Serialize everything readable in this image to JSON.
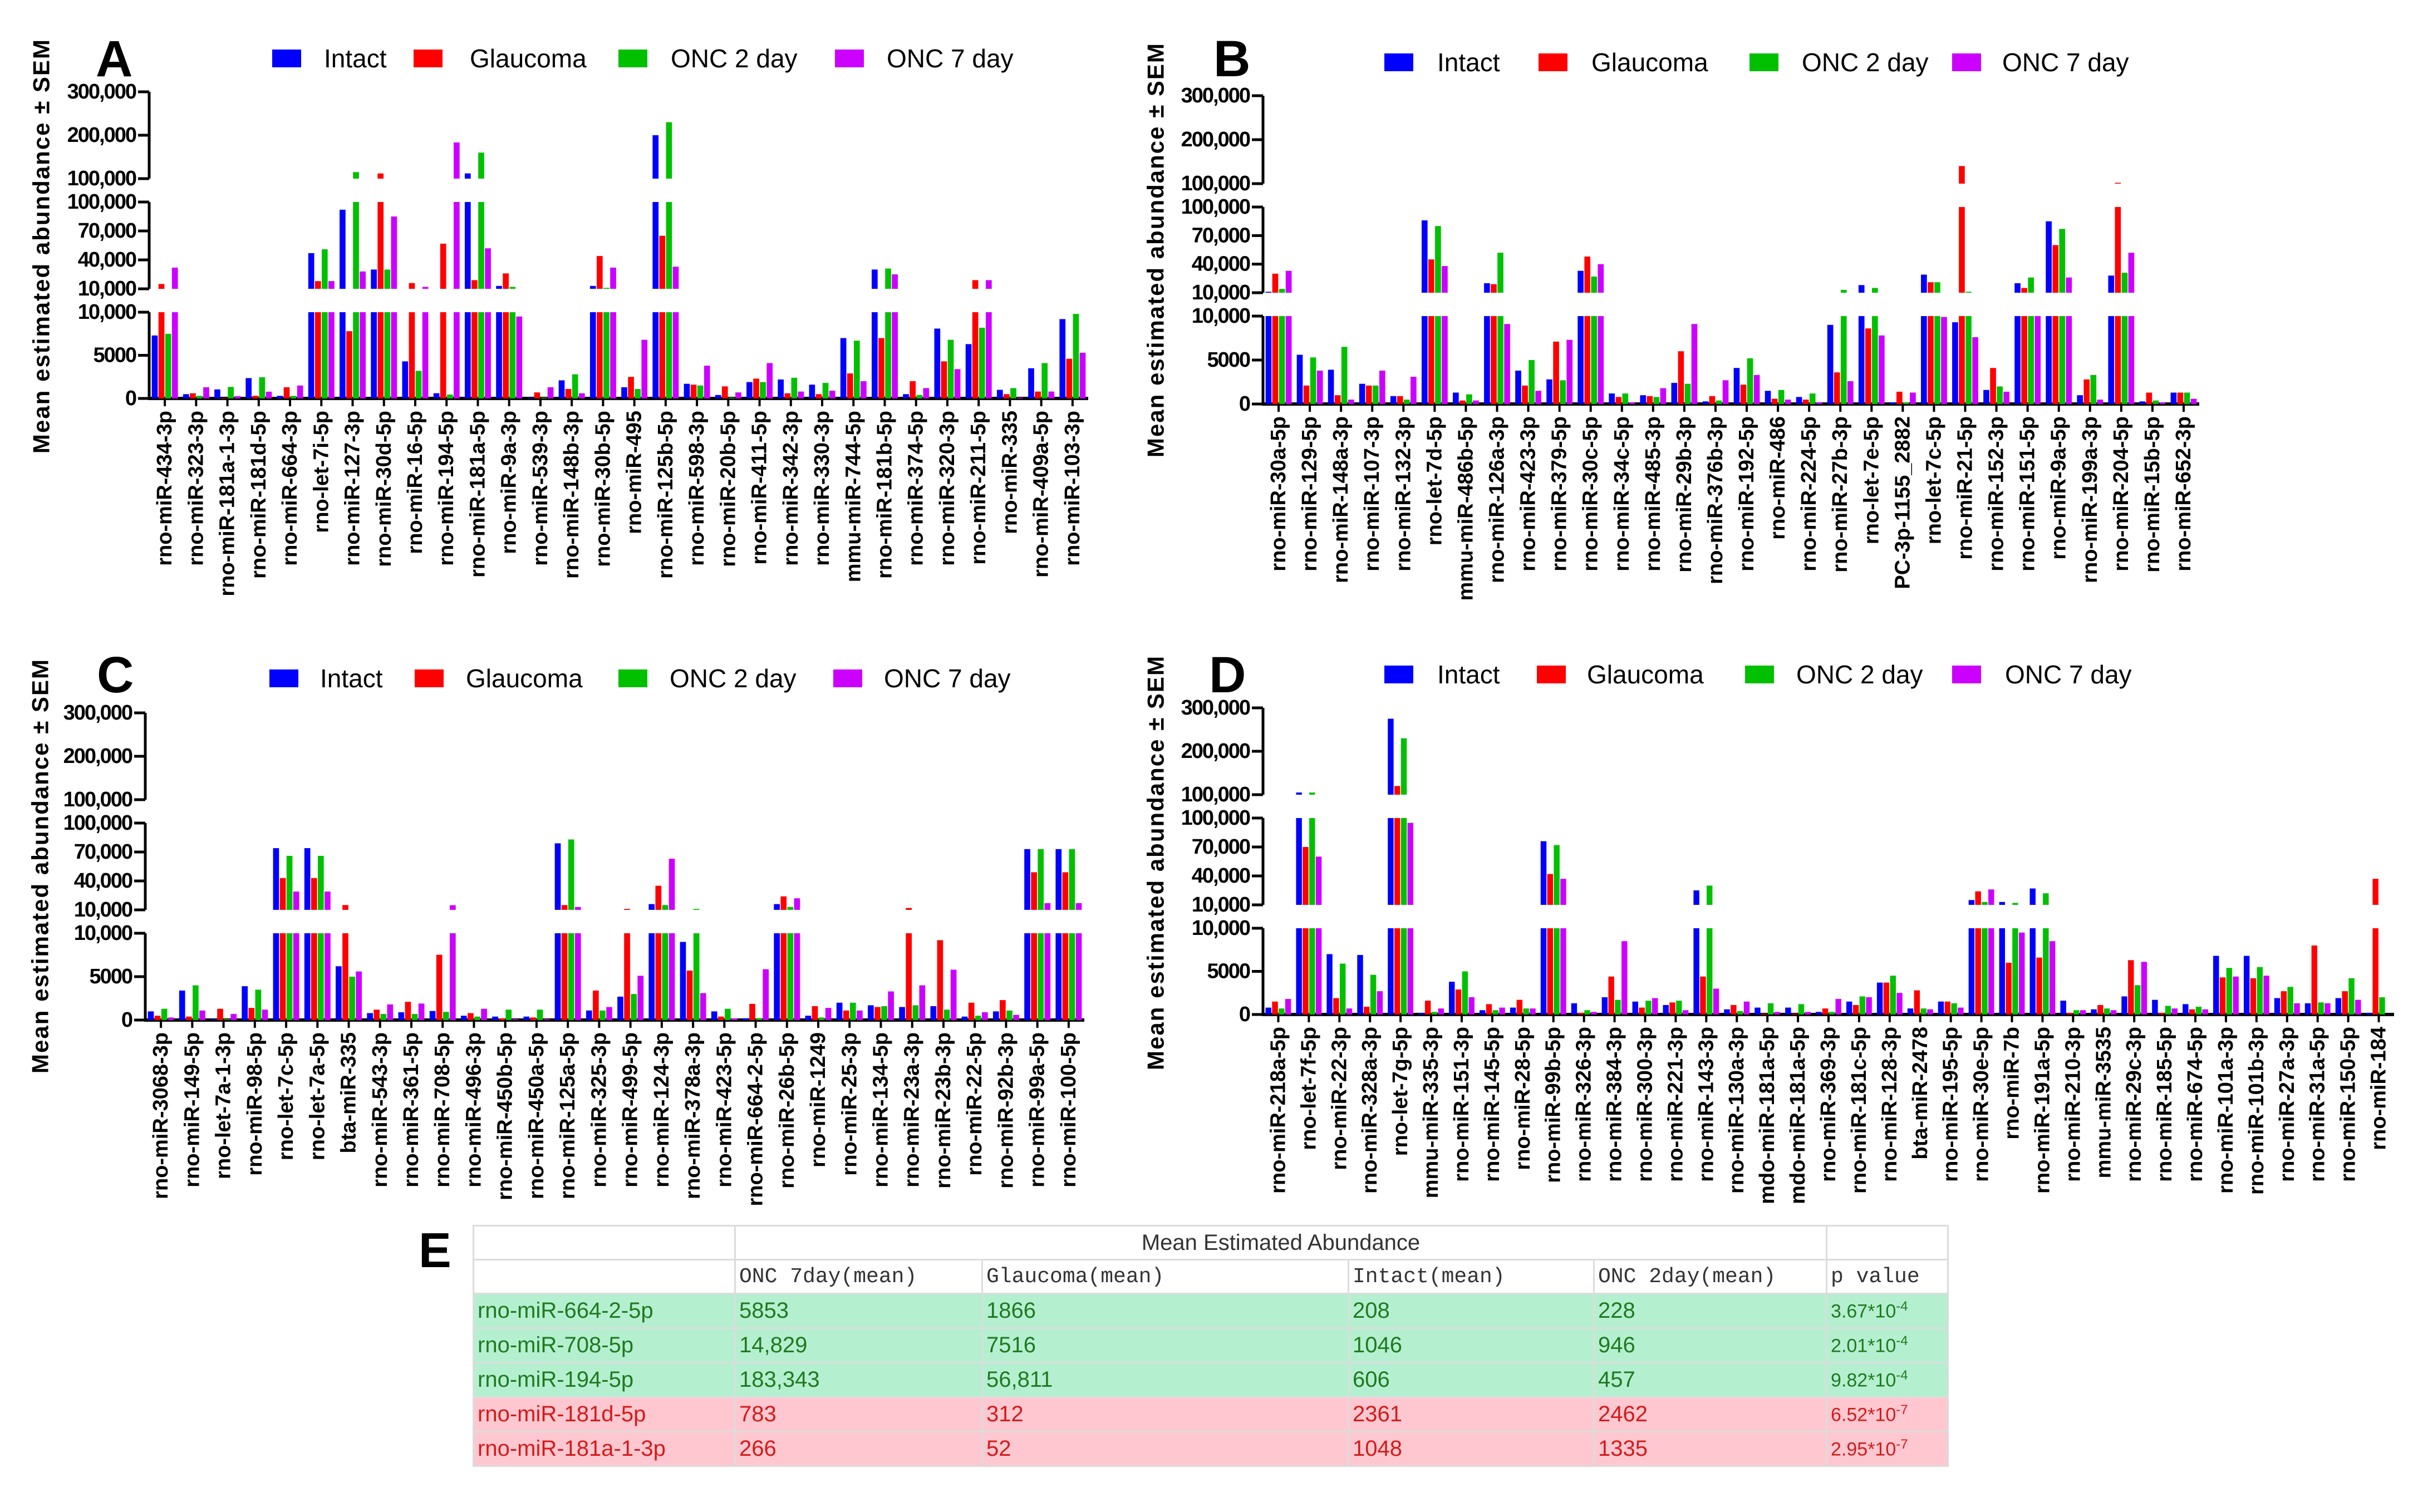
{
  "legend": [
    {
      "name": "Intact",
      "color": "#0000ff"
    },
    {
      "name": "Glaucoma",
      "color": "#ff0000"
    },
    {
      "name": "ONC 2 day",
      "color": "#00c000"
    },
    {
      "name": "ONC 7 day",
      "color": "#cc00ff"
    }
  ],
  "chart_data": [
    {
      "panel": "A",
      "type": "bar",
      "ylabel": "Mean estimated abundance ± SEM",
      "y_axis": "broken (0–10,000 | 10,000–100,000 | 100,000–300,000)",
      "yticks": {
        "bottom": [
          "0",
          "5000",
          "10,000"
        ],
        "middle": [
          "10,000",
          "40,000",
          "70,000",
          "100,000"
        ],
        "top": [
          "100,000",
          "200,000",
          "300,000"
        ]
      },
      "legend_position": "top",
      "categories": [
        "rno-miR-434-3p",
        "rno-miR-323-3p",
        "rno-miR-181a-1-3p",
        "rno-miR-181d-5p",
        "rno-miR-664-3p",
        "rno-let-7i-5p",
        "rno-miR-127-3p",
        "rno-miR-30d-5p",
        "rno-miR-16-5p",
        "rno-miR-194-5p",
        "rno-miR-181a-5p",
        "rno-miR-9a-3p",
        "rno-miR-539-3p",
        "rno-miR-148b-3p",
        "rno-miR-30b-5p",
        "rno-miR-495",
        "rno-miR-125b-5p",
        "rno-miR-598-3p",
        "rno-miR-20b-5p",
        "rno-miR-411-5p",
        "rno-miR-342-3p",
        "rno-miR-330-3p",
        "mmu-miR-744-5p",
        "rno-miR-181b-5p",
        "rno-miR-374-5p",
        "rno-miR-320-3p",
        "rno-miR-211-5p",
        "rno-miR-335",
        "rno-miR-409a-5p",
        "rno-miR-103-3p"
      ],
      "series": [
        {
          "name": "Intact",
          "values": [
            7300,
            500,
            1048,
            2361,
            300,
            47000,
            92000,
            30000,
            4300,
            606,
            112000,
            13000,
            100,
            2100,
            13000,
            1300,
            200000,
            1700,
            400,
            1900,
            2200,
            1600,
            7000,
            30000,
            500,
            8100,
            6300,
            1000,
            3500,
            9200
          ]
        },
        {
          "name": "Glaucoma",
          "values": [
            15000,
            600,
            52,
            312,
            1300,
            18000,
            7800,
            112000,
            16000,
            56811,
            19000,
            26000,
            700,
            1100,
            44000,
            2500,
            65000,
            1600,
            1400,
            2300,
            600,
            500,
            2900,
            7000,
            2000,
            4300,
            19000,
            500,
            800,
            4600
          ]
        },
        {
          "name": "ONC 2 day",
          "values": [
            7500,
            300,
            1335,
            2462,
            300,
            51000,
            115000,
            30000,
            3200,
            457,
            160000,
            12000,
            100,
            2800,
            11000,
            1100,
            230000,
            1500,
            100,
            1900,
            2400,
            1800,
            6700,
            31000,
            400,
            6800,
            8200,
            1200,
            4100,
            9800
          ]
        },
        {
          "name": "ONC 7 day",
          "values": [
            32000,
            1300,
            266,
            783,
            1500,
            18000,
            28000,
            85000,
            12000,
            183343,
            52000,
            9500,
            1300,
            600,
            32000,
            6800,
            33000,
            3800,
            700,
            4100,
            800,
            900,
            2000,
            25000,
            1200,
            3400,
            19000,
            100,
            800,
            5300
          ]
        }
      ]
    },
    {
      "panel": "B",
      "type": "bar",
      "ylabel": "Mean estimated abundance ± SEM",
      "y_axis": "broken (0–10,000 | 10,000–100,000 | 100,000–300,000)",
      "yticks": {
        "bottom": [
          "0",
          "5000",
          "10,000"
        ],
        "middle": [
          "10,000",
          "40,000",
          "70,000",
          "100,000"
        ],
        "top": [
          "100,000",
          "200,000",
          "300,000"
        ]
      },
      "legend_position": "top",
      "categories": [
        "rno-miR-30a-5p",
        "rno-miR-129-5p",
        "rno-miR-148a-3p",
        "rno-miR-107-3p",
        "rno-miR-132-3p",
        "rno-let-7d-5p",
        "mmu-miR-486b-5p",
        "rno-miR-126a-3p",
        "rno-miR-423-3p",
        "rno-miR-379-5p",
        "rno-miR-30c-5p",
        "rno-miR-34c-5p",
        "rno-miR-485-3p",
        "rno-miR-29b-3p",
        "rno-miR-376b-3p",
        "rno-miR-192-5p",
        "rno-miR-486",
        "rno-miR-224-5p",
        "rno-miR-27b-3p",
        "rno-let-7e-5p",
        "PC-3p-1155_2882",
        "rno-let-7c-5p",
        "rno-miR-21-5p",
        "rno-miR-152-3p",
        "rno-miR-151-5p",
        "rno-miR-9a-5p",
        "rno-miR-199a-3p",
        "rno-miR-204-5p",
        "rno-miR-15b-5p",
        "rno-miR-652-3p"
      ],
      "series": [
        {
          "name": "Intact",
          "values": [
            11000,
            5600,
            3900,
            2300,
            900,
            86000,
            1300,
            20000,
            3800,
            2800,
            33000,
            1200,
            1000,
            2400,
            300,
            4100,
            1500,
            800,
            9000,
            18000,
            200,
            29000,
            9300,
            1600,
            20000,
            85000,
            1000,
            28000,
            300,
            1300
          ]
        },
        {
          "name": "Glaucoma",
          "values": [
            30000,
            2100,
            1000,
            2100,
            900,
            45000,
            400,
            19000,
            2100,
            7100,
            48000,
            800,
            900,
            6000,
            900,
            2200,
            600,
            500,
            3600,
            8600,
            1400,
            21000,
            140000,
            4100,
            15000,
            60000,
            2800,
            102000,
            1300,
            1300
          ]
        },
        {
          "name": "ONC 2 day",
          "values": [
            14000,
            5300,
            6500,
            2100,
            500,
            80000,
            1100,
            52000,
            5000,
            2700,
            27000,
            1200,
            800,
            2300,
            400,
            5200,
            1600,
            1200,
            13000,
            15000,
            200,
            21000,
            11000,
            2000,
            26000,
            77000,
            3300,
            31000,
            400,
            1300
          ]
        },
        {
          "name": "ONC 7 day",
          "values": [
            33000,
            3800,
            500,
            3800,
            3100,
            38000,
            400,
            9100,
            1500,
            7300,
            40000,
            200,
            1800,
            9100,
            2700,
            3300,
            500,
            200,
            2600,
            7800,
            1300,
            9900,
            7600,
            1400,
            10000,
            26000,
            500,
            52000,
            200,
            600
          ]
        }
      ]
    },
    {
      "panel": "C",
      "type": "bar",
      "ylabel": "Mean estimated abundance ± SEM",
      "y_axis": "broken (0–10,000 | 10,000–100,000 | 100,000–300,000)",
      "yticks": {
        "bottom": [
          "0",
          "5000",
          "10,000"
        ],
        "middle": [
          "10,000",
          "40,000",
          "70,000",
          "100,000"
        ],
        "top": [
          "100,000",
          "200,000",
          "300,000"
        ]
      },
      "legend_position": "top",
      "categories": [
        "rno-miR-3068-3p",
        "rno-miR-149-5p",
        "rno-let-7a-1-3p",
        "rno-miR-98-5p",
        "rno-let-7c-5p",
        "rno-let-7a-5p",
        "bta-miR-335",
        "rno-miR-543-3p",
        "rno-miR-361-5p",
        "rno-miR-708-5p",
        "rno-miR-496-3p",
        "rno-miR-450b-5p",
        "rno-miR-450a-5p",
        "rno-miR-125a-5p",
        "rno-miR-325-3p",
        "rno-miR-499-5p",
        "rno-miR-124-3p",
        "rno-miR-378a-3p",
        "rno-miR-423-5p",
        "rno-miR-664-2-5p",
        "rno-miR-26b-5p",
        "rno-miR-1249",
        "rno-miR-25-3p",
        "rno-miR-134-5p",
        "rno-miR-23a-3p",
        "rno-miR-23b-3p",
        "rno-miR-22-5p",
        "rno-miR-92b-3p",
        "rno-miR-99a-5p",
        "rno-miR-100-5p"
      ],
      "series": [
        {
          "name": "Intact",
          "values": [
            1000,
            3400,
            100,
            3900,
            74000,
            74000,
            6200,
            800,
            900,
            1046,
            500,
            400,
            400,
            79000,
            1100,
            2700,
            16000,
            9000,
            1000,
            208,
            16000,
            500,
            2000,
            1700,
            1500,
            1600,
            400,
            1000,
            73000,
            73000
          ]
        },
        {
          "name": "Glaucoma",
          "values": [
            500,
            400,
            1300,
            1400,
            43000,
            43000,
            15000,
            1200,
            2100,
            7516,
            800,
            200,
            300,
            15000,
            3400,
            11000,
            35000,
            5700,
            400,
            1866,
            24000,
            1600,
            1100,
            1500,
            12000,
            9200,
            2000,
            2300,
            49000,
            49000
          ]
        },
        {
          "name": "ONC 2 day",
          "values": [
            1300,
            4000,
            100,
            3500,
            66000,
            66000,
            5000,
            700,
            700,
            946,
            400,
            1200,
            1200,
            83000,
            1100,
            3000,
            15000,
            11000,
            1300,
            228,
            13000,
            300,
            2000,
            1600,
            1700,
            1200,
            500,
            1100,
            73000,
            73000
          ]
        },
        {
          "name": "ONC 7 day",
          "values": [
            300,
            1100,
            700,
            1200,
            29000,
            29000,
            5600,
            1800,
            1900,
            14829,
            1300,
            100,
            100,
            13000,
            1500,
            5100,
            63000,
            3100,
            200,
            5853,
            22000,
            1400,
            1100,
            3300,
            4000,
            5800,
            900,
            600,
            17000,
            17000
          ]
        }
      ]
    },
    {
      "panel": "D",
      "type": "bar",
      "ylabel": "Mean estimated abundance ± SEM",
      "y_axis": "broken (0–10,000 | 10,000–100,000 | 100,000–300,000)",
      "yticks": {
        "bottom": [
          "0",
          "5000",
          "10,000"
        ],
        "middle": [
          "10,000",
          "40,000",
          "70,000",
          "100,000"
        ],
        "top": [
          "100,000",
          "200,000",
          "300,000"
        ]
      },
      "legend_position": "top",
      "categories": [
        "rno-miR-218a-5p",
        "rno-let-7f-5p",
        "rno-miR-22-3p",
        "rno-miR-328a-3p",
        "rno-let-7g-5p",
        "mmu-miR-335-3p",
        "rno-miR-151-3p",
        "rno-miR-145-5p",
        "rno-miR-28-5p",
        "rno-miR-99b-5p",
        "rno-miR-326-3p",
        "rno-miR-384-3p",
        "rno-miR-300-3p",
        "rno-miR-221-3p",
        "rno-miR-143-3p",
        "rno-miR-130a-3p",
        "mdo-miR-181a-5p",
        "mdo-miR-181a-5p",
        "rno-miR-369-3p",
        "rno-miR-181c-5p",
        "rno-miR-128-3p",
        "bta-miR-2478",
        "rno-miR-195-5p",
        "rno-miR-30e-5p",
        "rno-miR-7b",
        "rno-miR-191a-5p",
        "rno-miR-210-3p",
        "mmu-miR-3535",
        "rno-miR-29c-3p",
        "rno-miR-185-5p",
        "rno-miR-674-5p",
        "rno-miR-101a-3p",
        "rno-miR-101b-3p",
        "rno-miR-27a-3p",
        "rno-miR-31a-5p",
        "rno-miR-150-5p",
        "rno-miR-184"
      ],
      "series": [
        {
          "name": "Intact",
          "values": [
            800,
            105000,
            7000,
            6900,
            275000,
            200,
            3800,
            500,
            800,
            76000,
            1300,
            2000,
            1500,
            1100,
            25000,
            600,
            800,
            800,
            300,
            1500,
            3700,
            700,
            1500,
            15000,
            13000,
            27000,
            1600,
            600,
            2100,
            1700,
            1200,
            6800,
            6800,
            1900,
            1300,
            1900,
            200
          ]
        },
        {
          "name": "Glaucoma",
          "values": [
            1500,
            70000,
            1900,
            900,
            120000,
            1600,
            2900,
            1200,
            1700,
            42000,
            200,
            4400,
            800,
            1400,
            4400,
            1100,
            100,
            100,
            700,
            1100,
            3700,
            2800,
            1500,
            24000,
            6000,
            6600,
            200,
            1100,
            6300,
            200,
            600,
            4300,
            4200,
            2700,
            8000,
            2700,
            37000
          ]
        },
        {
          "name": "ONC 2 day",
          "values": [
            700,
            105000,
            5900,
            4600,
            230000,
            300,
            5000,
            500,
            700,
            72000,
            500,
            1700,
            1600,
            1600,
            30000,
            400,
            1300,
            1200,
            300,
            2100,
            4500,
            700,
            1300,
            13000,
            12000,
            22000,
            500,
            700,
            3400,
            1000,
            900,
            5400,
            5500,
            3200,
            1400,
            4200,
            2000
          ]
        },
        {
          "name": "ONC 7 day",
          "values": [
            1800,
            60000,
            700,
            2700,
            95000,
            700,
            2000,
            800,
            700,
            37000,
            300,
            8500,
            1900,
            500,
            3000,
            1500,
            300,
            300,
            1800,
            2000,
            2500,
            600,
            800,
            26000,
            9500,
            8500,
            500,
            500,
            6100,
            700,
            600,
            4400,
            4500,
            1300,
            1300,
            1700,
            0
          ]
        }
      ]
    }
  ],
  "table": {
    "letter": "E",
    "group_header": "Mean Estimated Abundance",
    "columns": [
      "",
      "ONC 7day(mean)",
      "Glaucoma(mean)",
      "Intact(mean)",
      "ONC 2day(mean)",
      "p value"
    ],
    "rows": [
      {
        "status": "up",
        "cells": [
          "rno-miR-664-2-5p",
          "5853",
          "1866",
          "208",
          "228"
        ],
        "p": {
          "mantissa": "3.67*10",
          "exp": "-4"
        }
      },
      {
        "status": "up",
        "cells": [
          "rno-miR-708-5p",
          "14,829",
          "7516",
          "1046",
          "946"
        ],
        "p": {
          "mantissa": "2.01*10",
          "exp": "-4"
        }
      },
      {
        "status": "up",
        "cells": [
          "rno-miR-194-5p",
          "183,343",
          "56,811",
          "606",
          "457"
        ],
        "p": {
          "mantissa": "9.82*10",
          "exp": "-4"
        }
      },
      {
        "status": "down",
        "cells": [
          "rno-miR-181d-5p",
          "783",
          "312",
          "2361",
          "2462"
        ],
        "p": {
          "mantissa": "6.52*10",
          "exp": "-7"
        }
      },
      {
        "status": "down",
        "cells": [
          "rno-miR-181a-1-3p",
          "266",
          "52",
          "1048",
          "1335"
        ],
        "p": {
          "mantissa": "2.95*10",
          "exp": "-7"
        }
      }
    ],
    "colors": {
      "up_bg": "#b4f0d0",
      "up_text": "#1f7a1f",
      "down_bg": "#ffc8d0",
      "down_text": "#d41a1a"
    }
  }
}
